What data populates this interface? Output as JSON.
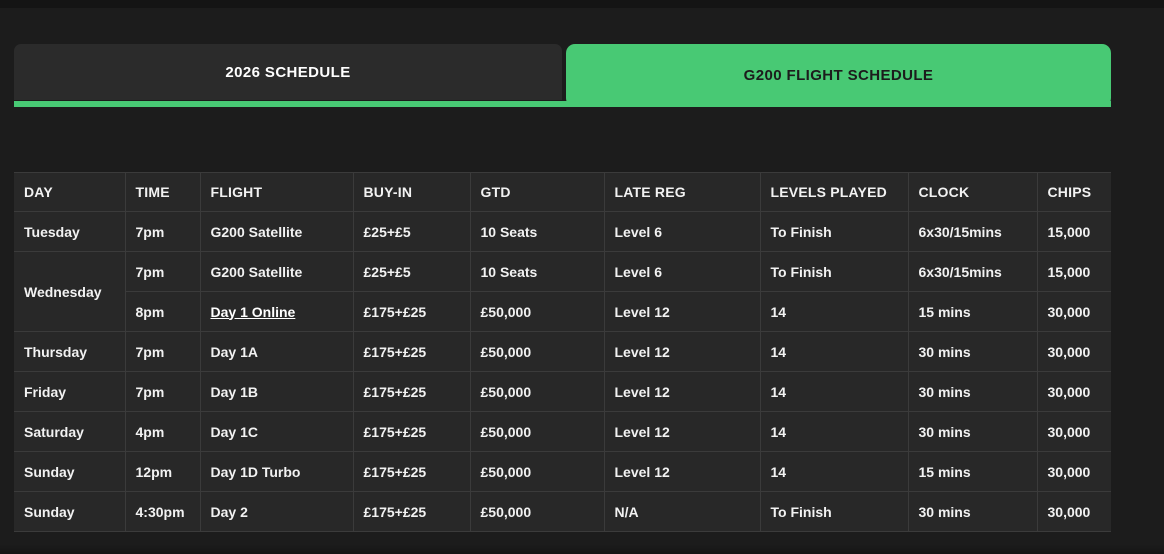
{
  "colors": {
    "accent_green": "#48c974",
    "page_bg": "#1c1c1c",
    "row_bg": "#282828",
    "tab_inactive_bg": "#2b2b2b",
    "grid_line": "#3b3b3b",
    "text": "#f2f2f2",
    "tab_active_text": "#1c1c1c"
  },
  "tabs": [
    {
      "label": "2026 SCHEDULE",
      "active": false
    },
    {
      "label": "G200 FLIGHT SCHEDULE",
      "active": true
    }
  ],
  "table": {
    "columns": [
      "DAY",
      "TIME",
      "FLIGHT",
      "BUY-IN",
      "GTD",
      "LATE REG",
      "LEVELS PLAYED",
      "CLOCK",
      "CHIPS"
    ],
    "rows": [
      {
        "day": "Tuesday",
        "day_rowspan": 1,
        "time": "7pm",
        "flight": "G200 Satellite",
        "flight_link": false,
        "buy_in": "£25+£5",
        "gtd": "10 Seats",
        "late_reg": "Level 6",
        "levels_played": "To Finish",
        "clock": "6x30/15mins",
        "chips": "15,000"
      },
      {
        "day": "Wednesday",
        "day_rowspan": 2,
        "time": "7pm",
        "flight": "G200 Satellite",
        "flight_link": false,
        "buy_in": "£25+£5",
        "gtd": "10 Seats",
        "late_reg": "Level 6",
        "levels_played": "To Finish",
        "clock": "6x30/15mins",
        "chips": "15,000"
      },
      {
        "day": null,
        "day_rowspan": 0,
        "time": "8pm",
        "flight": "Day 1 Online",
        "flight_link": true,
        "buy_in": "£175+£25",
        "gtd": "£50,000",
        "late_reg": "Level 12",
        "levels_played": "14",
        "clock": "15 mins",
        "chips": "30,000"
      },
      {
        "day": "Thursday",
        "day_rowspan": 1,
        "time": "7pm",
        "flight": "Day 1A",
        "flight_link": false,
        "buy_in": "£175+£25",
        "gtd": "£50,000",
        "late_reg": "Level 12",
        "levels_played": "14",
        "clock": "30 mins",
        "chips": "30,000"
      },
      {
        "day": "Friday",
        "day_rowspan": 1,
        "time": "7pm",
        "flight": "Day 1B",
        "flight_link": false,
        "buy_in": "£175+£25",
        "gtd": "£50,000",
        "late_reg": "Level 12",
        "levels_played": "14",
        "clock": "30 mins",
        "chips": "30,000"
      },
      {
        "day": "Saturday",
        "day_rowspan": 1,
        "time": "4pm",
        "flight": "Day 1C",
        "flight_link": false,
        "buy_in": "£175+£25",
        "gtd": "£50,000",
        "late_reg": "Level 12",
        "levels_played": "14",
        "clock": "30 mins",
        "chips": "30,000"
      },
      {
        "day": "Sunday",
        "day_rowspan": 1,
        "time": "12pm",
        "flight": "Day 1D Turbo",
        "flight_link": false,
        "buy_in": "£175+£25",
        "gtd": "£50,000",
        "late_reg": "Level 12",
        "levels_played": "14",
        "clock": "15 mins",
        "chips": "30,000"
      },
      {
        "day": "Sunday",
        "day_rowspan": 1,
        "time": "4:30pm",
        "flight": "Day 2",
        "flight_link": false,
        "buy_in": "£175+£25",
        "gtd": "£50,000",
        "late_reg": "N/A",
        "levels_played": "To Finish",
        "clock": "30 mins",
        "chips": "30,000"
      }
    ]
  }
}
